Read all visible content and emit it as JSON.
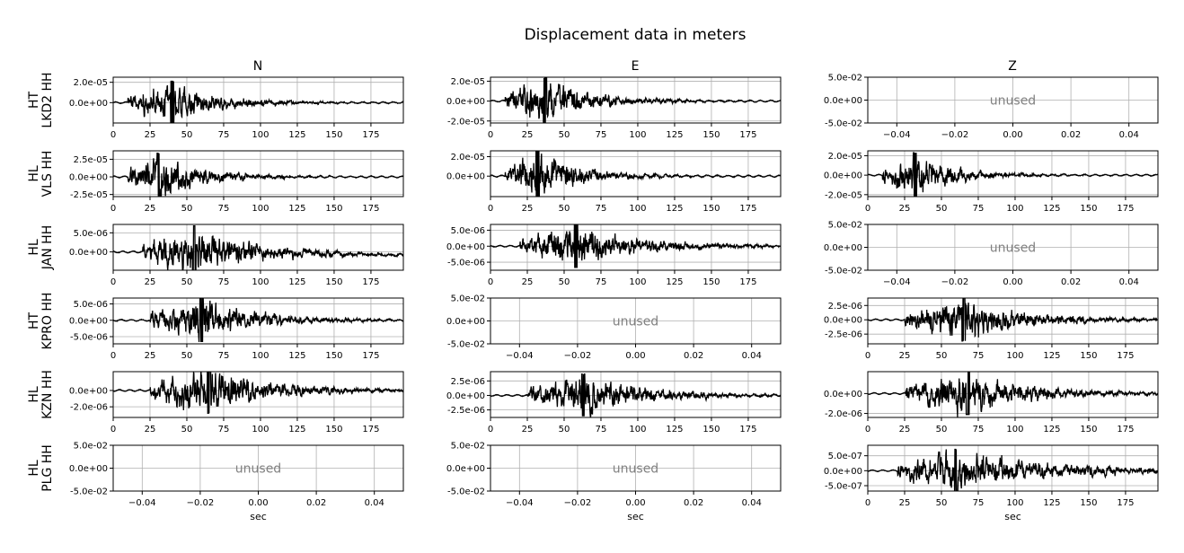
{
  "figure_title": "Displacement data in meters",
  "column_titles": [
    "N",
    "E",
    "Z"
  ],
  "row_labels": [
    [
      "HT",
      "LKD2 HH"
    ],
    [
      "HL",
      "VLS HH"
    ],
    [
      "HL",
      "JAN HH"
    ],
    [
      "HT",
      "KPRO HH"
    ],
    [
      "HL",
      "KZN HH"
    ],
    [
      "HL",
      "PLG HH"
    ]
  ],
  "unused_text": "unused",
  "xlabel": "sec",
  "colors": {
    "trace": "#000000",
    "grid": "#b0b0b0",
    "unused_text": "#808080"
  },
  "chart_data": {
    "type": "line",
    "title": "Displacement data in meters",
    "xlabel": "sec",
    "grid": true,
    "time_ticks": [
      "0",
      "25",
      "50",
      "75",
      "100",
      "125",
      "150",
      "175"
    ],
    "unused_ticks": [
      "−0.04",
      "−0.02",
      "0.00",
      "0.02",
      "0.04"
    ],
    "unused_yticks": [
      "5.0e-02",
      "0.0e+00",
      "-5.0e-02"
    ],
    "unused_xlim": [
      -0.05,
      0.05
    ],
    "unused_ylim": [
      -0.05,
      0.05
    ],
    "panels": [
      [
        {
          "unused": false,
          "xlim": [
            0,
            197
          ],
          "ylim": [
            -2e-05,
            2.5e-05
          ],
          "yticks": [
            [
              2e-05,
              "2.0e-05"
            ],
            [
              0,
              "0.0e+00"
            ]
          ],
          "onset": 10,
          "peak_time": 40,
          "amplitude": 2e-05,
          "tau": 35
        },
        {
          "unused": false,
          "xlim": [
            0,
            197
          ],
          "ylim": [
            -2.2e-05,
            2.4e-05
          ],
          "yticks": [
            [
              2e-05,
              "2.0e-05"
            ],
            [
              0,
              "0.0e+00"
            ],
            [
              -2e-05,
              "-2.0e-05"
            ]
          ],
          "onset": 10,
          "peak_time": 37,
          "amplitude": 2.2e-05,
          "tau": 35
        },
        {
          "unused": true
        }
      ],
      [
        {
          "unused": false,
          "xlim": [
            0,
            197
          ],
          "ylim": [
            -2.8e-05,
            3.7e-05
          ],
          "yticks": [
            [
              2.5e-05,
              "2.5e-05"
            ],
            [
              0,
              "0.0e+00"
            ],
            [
              -2.5e-05,
              "-2.5e-05"
            ]
          ],
          "onset": 10,
          "peak_time": 31,
          "amplitude": 3.2e-05,
          "tau": 30
        },
        {
          "unused": false,
          "xlim": [
            0,
            197
          ],
          "ylim": [
            -2.1e-05,
            2.6e-05
          ],
          "yticks": [
            [
              2e-05,
              "2.0e-05"
            ],
            [
              0,
              "0.0e+00"
            ]
          ],
          "onset": 10,
          "peak_time": 32,
          "amplitude": 2.5e-05,
          "tau": 30
        },
        {
          "unused": false,
          "xlim": [
            0,
            197
          ],
          "ylim": [
            -2.2e-05,
            2.5e-05
          ],
          "yticks": [
            [
              2e-05,
              "2.0e-05"
            ],
            [
              0,
              "0.0e+00"
            ],
            [
              -2e-05,
              "-2.0e-05"
            ]
          ],
          "onset": 10,
          "peak_time": 32,
          "amplitude": 2.2e-05,
          "tau": 30
        }
      ],
      [
        {
          "unused": false,
          "xlim": [
            0,
            197
          ],
          "ylim": [
            -4.8e-06,
            7.2e-06
          ],
          "yticks": [
            [
              5e-06,
              "5.0e-06"
            ],
            [
              0,
              "0.0e+00"
            ]
          ],
          "onset": 20,
          "peak_time": 55,
          "amplitude": 6.5e-06,
          "tau": 45,
          "drift": -1.5e-06
        },
        {
          "unused": false,
          "xlim": [
            0,
            197
          ],
          "ylim": [
            -7.5e-06,
            6.8e-06
          ],
          "yticks": [
            [
              5e-06,
              "5.0e-06"
            ],
            [
              0,
              "0.0e+00"
            ],
            [
              -5e-06,
              "-5.0e-06"
            ]
          ],
          "onset": 20,
          "peak_time": 58,
          "amplitude": 6.8e-06,
          "tau": 45
        },
        {
          "unused": true
        }
      ],
      [
        {
          "unused": false,
          "xlim": [
            0,
            197
          ],
          "ylim": [
            -7.2e-06,
            6.8e-06
          ],
          "yticks": [
            [
              5e-06,
              "5.0e-06"
            ],
            [
              0,
              "0.0e+00"
            ],
            [
              -5e-06,
              "-5.0e-06"
            ]
          ],
          "onset": 25,
          "peak_time": 60,
          "amplitude": 6.5e-06,
          "tau": 40
        },
        {
          "unused": true
        },
        {
          "unused": false,
          "xlim": [
            0,
            197
          ],
          "ylim": [
            -4.2e-06,
            3.8e-06
          ],
          "yticks": [
            [
              2.5e-06,
              "2.5e-06"
            ],
            [
              0,
              "0.0e+00"
            ],
            [
              -2.5e-06,
              "-2.5e-06"
            ]
          ],
          "onset": 25,
          "peak_time": 65,
          "amplitude": 3.7e-06,
          "tau": 45
        }
      ],
      [
        {
          "unused": false,
          "xlim": [
            0,
            197
          ],
          "ylim": [
            -3.3e-06,
            2.3e-06
          ],
          "yticks": [
            [
              0,
              "0.0e+00"
            ],
            [
              -2e-06,
              "-2.0e-06"
            ]
          ],
          "onset": 25,
          "peak_time": 65,
          "amplitude": 2.8e-06,
          "tau": 45
        },
        {
          "unused": false,
          "xlim": [
            0,
            197
          ],
          "ylim": [
            -3.8e-06,
            4.1e-06
          ],
          "yticks": [
            [
              2.5e-06,
              "2.5e-06"
            ],
            [
              0,
              "0.0e+00"
            ],
            [
              -2.5e-06,
              "-2.5e-06"
            ]
          ],
          "onset": 25,
          "peak_time": 63,
          "amplitude": 3.5e-06,
          "tau": 45
        },
        {
          "unused": false,
          "xlim": [
            0,
            197
          ],
          "ylim": [
            -2.4e-06,
            2.2e-06
          ],
          "yticks": [
            [
              0,
              "0.0e+00"
            ],
            [
              -2e-06,
              "-2.0e-06"
            ]
          ],
          "onset": 25,
          "peak_time": 68,
          "amplitude": 2.1e-06,
          "tau": 45
        }
      ],
      [
        {
          "unused": true
        },
        {
          "unused": true
        },
        {
          "unused": false,
          "xlim": [
            0,
            197
          ],
          "ylim": [
            -6.8e-07,
            8.5e-07
          ],
          "yticks": [
            [
              5e-07,
              "5.0e-07"
            ],
            [
              0,
              "0.0e+00"
            ],
            [
              -5e-07,
              "-5.0e-07"
            ]
          ],
          "onset": 20,
          "peak_time": 60,
          "amplitude": 6.8e-07,
          "tau": 70
        }
      ]
    ]
  }
}
